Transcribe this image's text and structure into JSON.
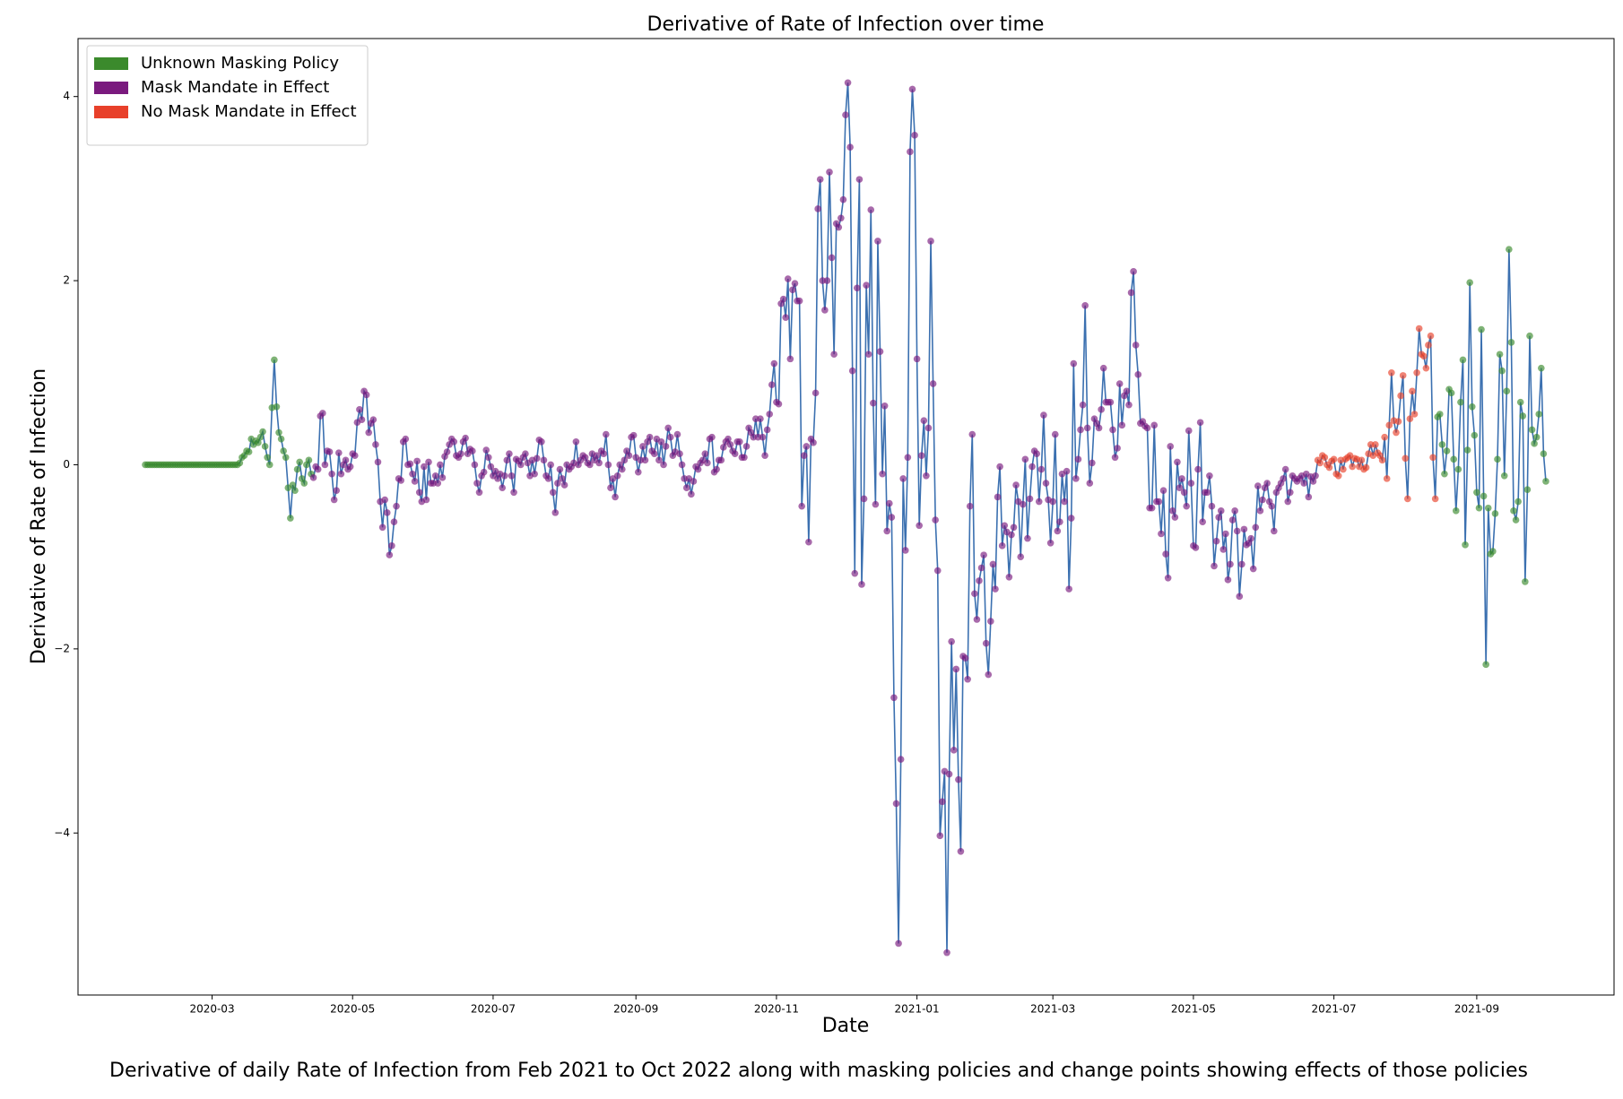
{
  "chart_data": {
    "type": "line",
    "title": "Derivative of Rate of Infection over time",
    "xlabel": "Date",
    "ylabel": "Derivative of Rate of Infection",
    "caption": "Derivative of daily Rate of Infection from Feb 2021 to Oct 2022 along with masking policies and change points showing effects of those policies",
    "line_color": "#3b70b0",
    "legend": "upper left",
    "xlim": [
      1.8,
      668.6
    ],
    "ylim": [
      -5.76,
      4.63
    ],
    "xticks": [
      {
        "value": 60,
        "label": "2020-03"
      },
      {
        "value": 121,
        "label": "2020-05"
      },
      {
        "value": 182,
        "label": "2020-07"
      },
      {
        "value": 244,
        "label": "2020-09"
      },
      {
        "value": 305,
        "label": "2020-11"
      },
      {
        "value": 366,
        "label": "2021-01"
      },
      {
        "value": 425,
        "label": "2021-03"
      },
      {
        "value": 486,
        "label": "2021-05"
      },
      {
        "value": 547,
        "label": "2021-07"
      },
      {
        "value": 609,
        "label": "2021-09"
      }
    ],
    "yticks": [
      {
        "value": -4,
        "label": "−4"
      },
      {
        "value": -2,
        "label": "−2"
      },
      0,
      2,
      4
    ],
    "series": [
      {
        "name": "Unknown Masking Policy",
        "color": "#3b8a2c",
        "periods": [
          [
            31,
            103
          ],
          [
            592,
            639
          ]
        ]
      },
      {
        "name": "Mask Mandate in Effect",
        "color": "#7a1a7e",
        "periods": [
          [
            104,
            539
          ]
        ]
      },
      {
        "name": "No Mask Mandate in Effect",
        "color": "#e8402a",
        "periods": [
          [
            540,
            591
          ]
        ]
      }
    ],
    "x": [
      31,
      32,
      33,
      34,
      35,
      36,
      37,
      38,
      39,
      40,
      41,
      42,
      43,
      44,
      45,
      46,
      47,
      48,
      49,
      50,
      51,
      52,
      53,
      54,
      55,
      56,
      57,
      58,
      59,
      60,
      61,
      62,
      63,
      64,
      65,
      66,
      67,
      68,
      69,
      70,
      71,
      72,
      73,
      74,
      75,
      76,
      77,
      78,
      79,
      80,
      81,
      82,
      83,
      84,
      85,
      86,
      87,
      88,
      89,
      90,
      91,
      92,
      93,
      94,
      95,
      96,
      97,
      98,
      99,
      100,
      101,
      102,
      103,
      104,
      105,
      106,
      107,
      108,
      109,
      110,
      111,
      112,
      113,
      114,
      115,
      116,
      117,
      118,
      119,
      120,
      121,
      122,
      123,
      124,
      125,
      126,
      127,
      128,
      129,
      130,
      131,
      132,
      133,
      134,
      135,
      136,
      137,
      138,
      139,
      140,
      141,
      142,
      143,
      144,
      145,
      146,
      147,
      148,
      149,
      150,
      151,
      152,
      153,
      154,
      155,
      156,
      157,
      158,
      159,
      160,
      161,
      162,
      163,
      164,
      165,
      166,
      167,
      168,
      169,
      170,
      171,
      172,
      173,
      174,
      175,
      176,
      177,
      178,
      179,
      180,
      181,
      182,
      183,
      184,
      185,
      186,
      187,
      188,
      189,
      190,
      191,
      192,
      193,
      194,
      195,
      196,
      197,
      198,
      199,
      200,
      201,
      202,
      203,
      204,
      205,
      206,
      207,
      208,
      209,
      210,
      211,
      212,
      213,
      214,
      215,
      216,
      217,
      218,
      219,
      220,
      221,
      222,
      223,
      224,
      225,
      226,
      227,
      228,
      229,
      230,
      231,
      232,
      233,
      234,
      235,
      236,
      237,
      238,
      239,
      240,
      241,
      242,
      243,
      244,
      245,
      246,
      247,
      248,
      249,
      250,
      251,
      252,
      253,
      254,
      255,
      256,
      257,
      258,
      259,
      260,
      261,
      262,
      263,
      264,
      265,
      266,
      267,
      268,
      269,
      270,
      271,
      272,
      273,
      274,
      275,
      276,
      277,
      278,
      279,
      280,
      281,
      282,
      283,
      284,
      285,
      286,
      287,
      288,
      289,
      290,
      291,
      292,
      293,
      294,
      295,
      296,
      297,
      298,
      299,
      300,
      301,
      302,
      303,
      304,
      305,
      306,
      307,
      308,
      309,
      310,
      311,
      312,
      313,
      314,
      315,
      316,
      317,
      318,
      319,
      320,
      321,
      322,
      323,
      324,
      325,
      326,
      327,
      328,
      329,
      330,
      331,
      332,
      333,
      334,
      335,
      336,
      337,
      338,
      339,
      340,
      341,
      342,
      343,
      344,
      345,
      346,
      347,
      348,
      349,
      350,
      351,
      352,
      353,
      354,
      355,
      356,
      357,
      358,
      359,
      360,
      361,
      362,
      363,
      364,
      365,
      366,
      367,
      368,
      369,
      370,
      371,
      372,
      373,
      374,
      375,
      376,
      377,
      378,
      379,
      380,
      381,
      382,
      383,
      384,
      385,
      386,
      387,
      388,
      389,
      390,
      391,
      392,
      393,
      394,
      395,
      396,
      397,
      398,
      399,
      400,
      401,
      402,
      403,
      404,
      405,
      406,
      407,
      408,
      409,
      410,
      411,
      412,
      413,
      414,
      415,
      416,
      417,
      418,
      419,
      420,
      421,
      422,
      423,
      424,
      425,
      426,
      427,
      428,
      429,
      430,
      431,
      432,
      433,
      434,
      435,
      436,
      437,
      438,
      439,
      440,
      441,
      442,
      443,
      444,
      445,
      446,
      447,
      448,
      449,
      450,
      451,
      452,
      453,
      454,
      455,
      456,
      457,
      458,
      459,
      460,
      461,
      462,
      463,
      464,
      465,
      466,
      467,
      468,
      469,
      470,
      471,
      472,
      473,
      474,
      475,
      476,
      477,
      478,
      479,
      480,
      481,
      482,
      483,
      484,
      485,
      486,
      487,
      488,
      489,
      490,
      491,
      492,
      493,
      494,
      495,
      496,
      497,
      498,
      499,
      500,
      501,
      502,
      503,
      504,
      505,
      506,
      507,
      508,
      509,
      510,
      511,
      512,
      513,
      514,
      515,
      516,
      517,
      518,
      519,
      520,
      521,
      522,
      523,
      524,
      525,
      526,
      527,
      528,
      529,
      530,
      531,
      532,
      533,
      534,
      535,
      536,
      537,
      538,
      539,
      540,
      541,
      542,
      543,
      544,
      545,
      546,
      547,
      548,
      549,
      550,
      551,
      552,
      553,
      554,
      555,
      556,
      557,
      558,
      559,
      560,
      561,
      562,
      563,
      564,
      565,
      566,
      567,
      568,
      569,
      570,
      571,
      572,
      573,
      574,
      575,
      576,
      577,
      578,
      579,
      580,
      581,
      582,
      583,
      584,
      585,
      586,
      587,
      588,
      589,
      590,
      591,
      592,
      593,
      594,
      595,
      596,
      597,
      598,
      599,
      600,
      601,
      602,
      603,
      604,
      605,
      606,
      607,
      608,
      609,
      610,
      611,
      612,
      613,
      614,
      615,
      616,
      617,
      618,
      619,
      620,
      621,
      622,
      623,
      624,
      625,
      626,
      627,
      628,
      629,
      630,
      631,
      632,
      633,
      634,
      635,
      636,
      637,
      638,
      639
    ],
    "values": [
      0,
      0,
      0,
      0,
      0,
      0,
      0,
      0,
      0,
      0,
      0,
      0,
      0,
      0,
      0,
      0,
      0,
      0,
      0,
      0,
      0,
      0,
      0,
      0,
      0,
      0,
      0,
      0,
      0,
      0,
      0,
      0,
      0,
      0,
      0,
      0,
      0,
      0,
      0,
      0,
      0.0,
      0.02,
      0.08,
      0.1,
      0.15,
      0.14,
      0.28,
      0.22,
      0.26,
      0.24,
      0.3,
      0.36,
      0.2,
      0.08,
      0.0,
      0.62,
      1.14,
      0.63,
      0.35,
      0.28,
      0.15,
      0.08,
      -0.25,
      -0.58,
      -0.22,
      -0.28,
      -0.05,
      0.03,
      -0.15,
      -0.2,
      0.0,
      0.05,
      -0.1,
      -0.14,
      -0.02,
      -0.05,
      0.53,
      0.56,
      0.0,
      0.15,
      0.14,
      -0.1,
      -0.38,
      -0.28,
      0.13,
      -0.1,
      0.0,
      0.05,
      -0.05,
      -0.02,
      0.12,
      0.1,
      0.46,
      0.6,
      0.49,
      0.8,
      0.76,
      0.35,
      0.45,
      0.49,
      0.22,
      0.03,
      -0.4,
      -0.68,
      -0.38,
      -0.52,
      -0.98,
      -0.88,
      -0.62,
      -0.45,
      -0.15,
      -0.17,
      0.25,
      0.28,
      0.0,
      0.01,
      -0.1,
      -0.18,
      0.04,
      -0.3,
      -0.4,
      -0.02,
      -0.38,
      0.03,
      -0.2,
      -0.2,
      -0.12,
      -0.2,
      0.0,
      -0.14,
      0.09,
      0.14,
      0.22,
      0.28,
      0.25,
      0.1,
      0.08,
      0.12,
      0.25,
      0.29,
      0.12,
      0.17,
      0.15,
      0.0,
      -0.2,
      -0.3,
      -0.12,
      -0.08,
      0.16,
      0.08,
      -0.02,
      -0.12,
      -0.07,
      -0.15,
      -0.1,
      -0.25,
      -0.12,
      0.05,
      0.12,
      -0.12,
      -0.3,
      0.06,
      0.04,
      0.0,
      0.08,
      0.12,
      0.02,
      -0.12,
      0.05,
      -0.1,
      0.07,
      0.27,
      0.25,
      0.05,
      -0.12,
      -0.15,
      0.0,
      -0.3,
      -0.52,
      -0.2,
      -0.05,
      -0.15,
      -0.22,
      0.0,
      -0.05,
      -0.02,
      0.02,
      0.25,
      0.0,
      0.05,
      0.1,
      0.08,
      0.02,
      0.0,
      0.12,
      0.05,
      0.1,
      0.02,
      0.15,
      0.12,
      0.33,
      0.0,
      -0.25,
      -0.15,
      -0.35,
      -0.12,
      0.0,
      -0.05,
      0.05,
      0.15,
      0.1,
      0.3,
      0.32,
      0.08,
      -0.08,
      0.05,
      0.2,
      0.05,
      0.25,
      0.3,
      0.15,
      0.12,
      0.28,
      0.05,
      0.25,
      0.0,
      0.2,
      0.4,
      0.3,
      0.1,
      0.14,
      0.33,
      0.12,
      0.0,
      -0.15,
      -0.25,
      -0.15,
      -0.32,
      -0.18,
      -0.02,
      -0.05,
      0.02,
      0.05,
      0.12,
      0.02,
      0.28,
      0.3,
      -0.08,
      -0.05,
      0.05,
      0.05,
      0.19,
      0.25,
      0.28,
      0.22,
      0.15,
      0.12,
      0.25,
      0.25,
      0.08,
      0.08,
      0.2,
      0.4,
      0.35,
      0.3,
      0.5,
      0.3,
      0.5,
      0.3,
      0.1,
      0.38,
      0.55,
      0.87,
      1.1,
      0.68,
      0.66,
      1.75,
      1.8,
      1.6,
      2.02,
      1.15,
      1.9,
      1.97,
      1.78,
      1.78,
      -0.45,
      0.1,
      0.2,
      -0.84,
      0.28,
      0.24,
      0.78,
      2.78,
      3.1,
      2.0,
      1.68,
      2.0,
      3.18,
      2.25,
      1.2,
      2.62,
      2.58,
      2.68,
      2.88,
      3.8,
      4.15,
      3.45,
      1.02,
      -1.18,
      1.92,
      3.1,
      -1.3,
      -0.37,
      1.95,
      1.2,
      2.77,
      0.67,
      -0.43,
      2.43,
      1.23,
      -0.1,
      0.64,
      -0.72,
      -0.42,
      -0.57,
      -2.53,
      -3.68,
      -5.2,
      -3.2,
      -0.15,
      -0.93,
      0.08,
      3.4,
      4.08,
      3.58,
      1.15,
      -0.66,
      0.1,
      0.48,
      -0.12,
      0.4,
      2.43,
      0.88,
      -0.6,
      -1.15,
      -4.03,
      -3.66,
      -3.33,
      -5.3,
      -3.36,
      -1.92,
      -3.1,
      -2.22,
      -3.42,
      -4.2,
      -2.08,
      -2.1,
      -2.33,
      -0.45,
      0.33,
      -1.4,
      -1.68,
      -1.26,
      -1.12,
      -0.98,
      -1.94,
      -2.28,
      -1.7,
      -1.08,
      -1.35,
      -0.35,
      -0.02,
      -0.88,
      -0.66,
      -0.73,
      -1.22,
      -0.76,
      -0.68,
      -0.22,
      -0.4,
      -1.0,
      -0.43,
      0.06,
      -0.8,
      -0.37,
      -0.02,
      0.15,
      0.12,
      -0.4,
      -0.05,
      0.54,
      -0.2,
      -0.38,
      -0.85,
      -0.4,
      0.33,
      -0.72,
      -0.62,
      -0.1,
      -0.4,
      -0.07,
      -1.35,
      -0.58,
      1.1,
      -0.15,
      0.06,
      0.38,
      0.65,
      1.73,
      0.4,
      -0.2,
      0.02,
      0.5,
      0.45,
      0.4,
      0.6,
      1.05,
      0.68,
      0.68,
      0.68,
      0.38,
      0.08,
      0.18,
      0.88,
      0.43,
      0.75,
      0.8,
      0.65,
      1.87,
      2.1,
      1.3,
      0.98,
      0.45,
      0.47,
      0.42,
      0.4,
      -0.47,
      -0.47,
      0.43,
      -0.4,
      -0.4,
      -0.75,
      -0.28,
      -0.97,
      -1.23,
      0.2,
      -0.5,
      -0.57,
      0.03,
      -0.25,
      -0.15,
      -0.3,
      -0.45,
      0.37,
      -0.2,
      -0.88,
      -0.9,
      -0.05,
      0.46,
      -0.62,
      -0.3,
      -0.3,
      -0.12,
      -0.45,
      -1.1,
      -0.83,
      -0.57,
      -0.5,
      -0.92,
      -0.75,
      -1.25,
      -1.08,
      -0.6,
      -0.5,
      -0.72,
      -1.43,
      -1.08,
      -0.7,
      -0.87,
      -0.85,
      -0.8,
      -1.13,
      -0.68,
      -0.23,
      -0.5,
      -0.38,
      -0.25,
      -0.2,
      -0.4,
      -0.45,
      -0.72,
      -0.3,
      -0.25,
      -0.2,
      -0.15,
      -0.05,
      -0.4,
      -0.3,
      -0.12,
      -0.15,
      -0.18,
      -0.15,
      -0.12,
      -0.2,
      -0.1,
      -0.35,
      -0.13,
      -0.18,
      -0.12,
      0.05,
      0.02,
      0.1,
      0.08,
      0.0,
      -0.03,
      0.04,
      0.06,
      -0.1,
      -0.12,
      0.05,
      -0.05,
      0.06,
      0.08,
      0.1,
      -0.02,
      0.07,
      0.06,
      -0.02,
      0.05,
      -0.05,
      -0.03,
      0.12,
      0.22,
      0.1,
      0.22,
      0.13,
      0.1,
      0.05,
      0.3,
      -0.15,
      0.43,
      1.0,
      0.48,
      0.35,
      0.47,
      0.75,
      0.97,
      0.07,
      -0.37,
      0.5,
      0.8,
      0.55,
      1.0,
      1.48,
      1.2,
      1.18,
      1.05,
      1.3,
      1.4,
      0.08,
      -0.37,
      0.52,
      0.55,
      0.22,
      -0.1,
      0.15,
      0.82,
      0.78,
      0.06,
      -0.5,
      -0.05,
      0.68,
      1.14,
      -0.87,
      0.16,
      1.98,
      0.63,
      0.32,
      -0.3,
      -0.47,
      1.47,
      -0.34,
      -2.17,
      -0.47,
      -0.97,
      -0.94,
      -0.53,
      0.06,
      1.2,
      1.02,
      -0.12,
      0.8,
      2.34,
      1.33,
      -0.5,
      -0.6,
      -0.4,
      0.68,
      0.53,
      -1.27,
      -0.27,
      1.4,
      0.38,
      0.23,
      0.3,
      0.55,
      1.05,
      0.12,
      -0.18
    ]
  }
}
